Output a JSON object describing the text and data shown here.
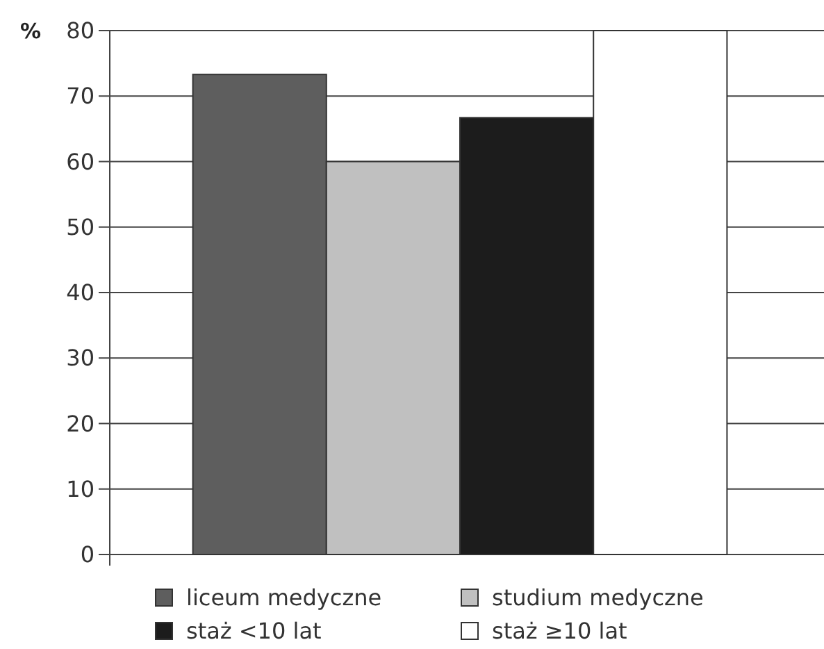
{
  "chart_data": {
    "type": "bar",
    "ylabel": "%",
    "categories": [
      null
    ],
    "series": [
      {
        "name": "liceum medyczne",
        "color": "#5e5e5e",
        "values": [
          73.3
        ]
      },
      {
        "name": "studium medyczne",
        "color": "#c0c0c0",
        "values": [
          60
        ]
      },
      {
        "name": "staż <10 lat",
        "color": "#1c1c1c",
        "values": [
          66.7
        ]
      },
      {
        "name": "staż ≥10 lat",
        "color": "#ffffff",
        "values": [
          80
        ]
      }
    ],
    "ylim": [
      0,
      80
    ],
    "yticks": [
      0,
      10,
      20,
      30,
      40,
      50,
      60,
      70,
      80
    ],
    "grid": "y",
    "legend": "bottom"
  }
}
